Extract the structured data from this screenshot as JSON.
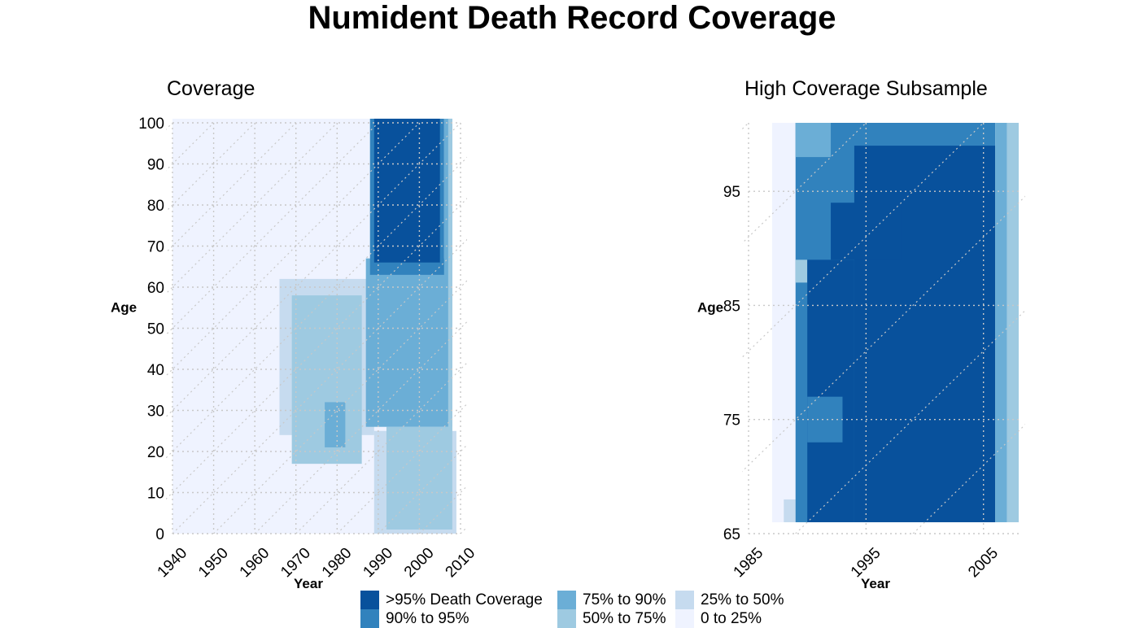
{
  "title": "Numident Death Record Coverage",
  "colors": {
    "c5": "#08519c",
    "c4": "#3182bd",
    "c3": "#6baed6",
    "c2": "#9ecae1",
    "c1": "#c6dbef",
    "c0": "#eff3ff",
    "grid": "#c8c8c8"
  },
  "legend": [
    {
      "label": ">95% Death Coverage",
      "color": "#08519c"
    },
    {
      "label": "90% to 95%",
      "color": "#3182bd"
    },
    {
      "label": "75% to 90%",
      "color": "#6baed6"
    },
    {
      "label": "50% to 75%",
      "color": "#9ecae1"
    },
    {
      "label": "25% to 50%",
      "color": "#c6dbef"
    },
    {
      "label": "0 to 25%",
      "color": "#eff3ff"
    }
  ],
  "chart_data": [
    {
      "type": "heatmap",
      "title": "Coverage",
      "xlabel": "Year",
      "ylabel": "Age",
      "xlim": [
        1940,
        2010
      ],
      "ylim": [
        0,
        100
      ],
      "xticks": [
        1940,
        1950,
        1960,
        1970,
        1980,
        1990,
        2000,
        2010
      ],
      "yticks": [
        0,
        10,
        20,
        30,
        40,
        50,
        60,
        70,
        80,
        90,
        100
      ],
      "grid": true,
      "cell_years": 1,
      "cell_ages": 1,
      "categories": [
        "0 to 25%",
        "25% to 50%",
        "50% to 75%",
        "75% to 90%",
        "90% to 95%",
        ">95% Death Coverage"
      ],
      "regions": [
        {
          "category": "0 to 25%",
          "x": [
            1940,
            2007
          ],
          "y": [
            0,
            101
          ]
        },
        {
          "category": "25% to 50%",
          "x": [
            1966,
            1989
          ],
          "y": [
            24,
            62
          ]
        },
        {
          "category": "25% to 50%",
          "x": [
            1989,
            2009
          ],
          "y": [
            0,
            25
          ]
        },
        {
          "category": "50% to 75%",
          "x": [
            1969,
            1986
          ],
          "y": [
            17,
            58
          ]
        },
        {
          "category": "50% to 75%",
          "x": [
            1992,
            2008
          ],
          "y": [
            1,
            26
          ]
        },
        {
          "category": "75% to 90%",
          "x": [
            1977,
            1982
          ],
          "y": [
            21,
            32
          ]
        },
        {
          "category": "75% to 90%",
          "x": [
            1987,
            2008
          ],
          "y": [
            26,
            67
          ]
        },
        {
          "category": "75% to 90%",
          "x": [
            2006,
            2008
          ],
          "y": [
            66,
            101
          ]
        },
        {
          "category": "90% to 95%",
          "x": [
            1988,
            2006
          ],
          "y": [
            63,
            101
          ]
        },
        {
          "category": "50% to 75%",
          "x": [
            2007,
            2008
          ],
          "y": [
            25,
            101
          ]
        },
        {
          "category": ">95% Death Coverage",
          "x": [
            1989,
            2005
          ],
          "y": [
            66,
            101
          ]
        }
      ]
    },
    {
      "type": "heatmap",
      "title": "High Coverage Subsample",
      "xlabel": "Year",
      "ylabel": "Age",
      "xlim": [
        1985,
        2008
      ],
      "ylim": [
        65,
        101
      ],
      "xticks": [
        1985,
        1995,
        2005
      ],
      "yticks": [
        65,
        75,
        85,
        95
      ],
      "grid": true,
      "cell_years": 1,
      "cell_ages": 1,
      "categories": [
        "0 to 25%",
        "25% to 50%",
        "50% to 75%",
        "75% to 90%",
        "90% to 95%",
        ">95% Death Coverage"
      ],
      "regions": [
        {
          "category": "0 to 25%",
          "x": [
            1987,
            1989
          ],
          "y": [
            66,
            101
          ]
        },
        {
          "category": "25% to 50%",
          "x": [
            1988,
            1989
          ],
          "y": [
            66,
            68
          ]
        },
        {
          "category": "90% to 95%",
          "x": [
            1989,
            2006
          ],
          "y": [
            66,
            101
          ]
        },
        {
          "category": "75% to 90%",
          "x": [
            1989,
            1992
          ],
          "y": [
            98,
            101
          ]
        },
        {
          "category": "50% to 75%",
          "x": [
            1989,
            1990
          ],
          "y": [
            87,
            89
          ]
        },
        {
          "category": ">95% Death Coverage",
          "x": [
            1994,
            2006
          ],
          "y": [
            66,
            99
          ]
        },
        {
          "category": ">95% Death Coverage",
          "x": [
            1990,
            1994
          ],
          "y": [
            66,
            89
          ]
        },
        {
          "category": "90% to 95%",
          "x": [
            1990,
            1993
          ],
          "y": [
            73,
            77
          ]
        },
        {
          "category": ">95% Death Coverage",
          "x": [
            1992,
            1998
          ],
          "y": [
            89,
            94
          ]
        },
        {
          "category": "75% to 90%",
          "x": [
            2006,
            2007
          ],
          "y": [
            66,
            101
          ]
        },
        {
          "category": "50% to 75%",
          "x": [
            2007,
            2008
          ],
          "y": [
            66,
            101
          ]
        }
      ]
    }
  ]
}
